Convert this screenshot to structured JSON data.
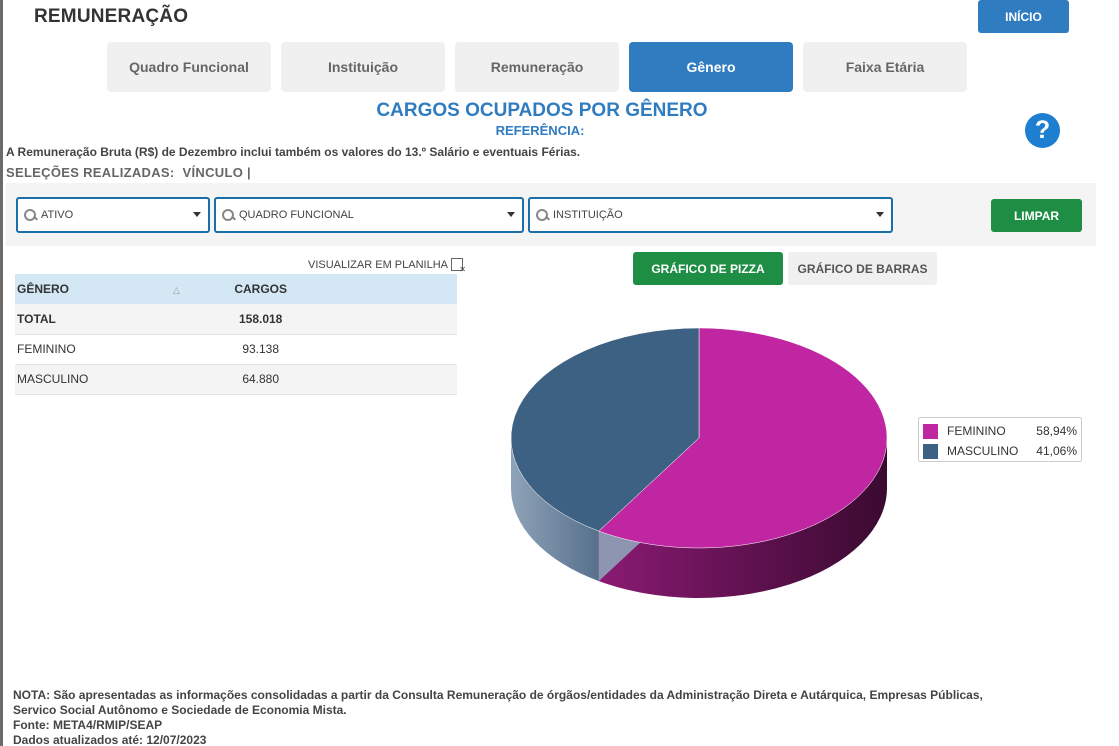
{
  "header": {
    "title": "REMUNERAÇÃO",
    "home_label": "INÍCIO"
  },
  "tabs": [
    {
      "label": "Quadro Funcional",
      "active": false
    },
    {
      "label": "Instituição",
      "active": false
    },
    {
      "label": "Remuneração",
      "active": false
    },
    {
      "label": "Gênero",
      "active": true
    },
    {
      "label": "Faixa Etária",
      "active": false
    }
  ],
  "page": {
    "title": "CARGOS OCUPADOS POR GÊNERO",
    "reference_label": "REFERÊNCIA:",
    "note": "A Remuneração Bruta (R$) de Dezembro inclui também os valores do 13.º Salário e eventuais Férias.",
    "selections_label": "SELEÇÕES REALIZADAS:",
    "selections_value": "VÍNCULO |",
    "help_glyph": "?"
  },
  "filters": {
    "vinculo": "ATIVO",
    "quadro": "QUADRO FUNCIONAL",
    "instituicao": "INSTITUIÇÃO",
    "clear_label": "LIMPAR"
  },
  "table": {
    "sheet_link": "VISUALIZAR EM PLANILHA",
    "headers": [
      "GÊNERO",
      "CARGOS"
    ],
    "sort_glyph": "△",
    "total": {
      "label": "TOTAL",
      "value": "158.018"
    },
    "rows": [
      {
        "label": "FEMININO",
        "value": "93.138"
      },
      {
        "label": "MASCULINO",
        "value": "64.880"
      }
    ]
  },
  "chart_buttons": {
    "pie": "GRÁFICO DE PIZZA",
    "bar": "GRÁFICO DE BARRAS"
  },
  "chart_data": {
    "type": "pie",
    "categories": [
      "FEMININO",
      "MASCULINO"
    ],
    "values": [
      93138,
      64880
    ],
    "percent_labels": [
      "58,94%",
      "41,06%"
    ],
    "colors": [
      "#c026a2",
      "#3d6182"
    ],
    "side_colors": [
      "#8a1a73",
      "#8fa3b8"
    ],
    "legend_position": "right",
    "style": "3d"
  },
  "footer": {
    "lines": [
      "NOTA: São apresentadas as informações consolidadas a partir da Consulta Remuneração de órgãos/entidades da Administração Direta e Autárquica, Empresas Públicas,",
      "Servico Social Autônomo e Sociedade de Economia Mista.",
      "Fonte: META4/RMIP/SEAP",
      "Dados atualizados até: 12/07/2023"
    ]
  }
}
